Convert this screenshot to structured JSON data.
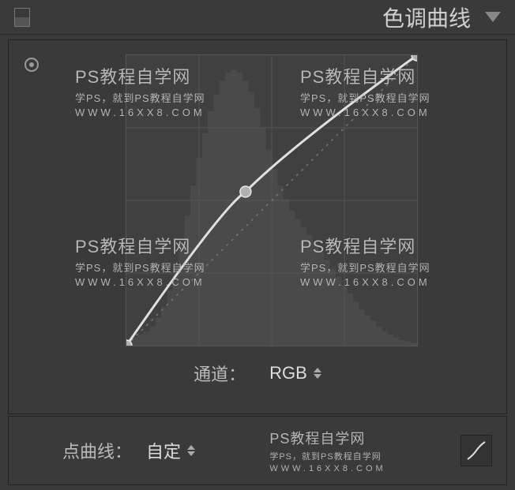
{
  "panel": {
    "title": "色调曲线"
  },
  "curve": {
    "type": "tone-curve",
    "size": 370,
    "background": "#404040",
    "border_color": "#555555",
    "grid_color": "#555555",
    "grid_divisions": 4,
    "diagonal_dot_color": "#777777",
    "histogram_color": "#4a4a4a",
    "histogram_values": [
      0.02,
      0.03,
      0.04,
      0.05,
      0.07,
      0.1,
      0.14,
      0.2,
      0.28,
      0.37,
      0.47,
      0.58,
      0.68,
      0.77,
      0.85,
      0.91,
      0.96,
      0.99,
      1.0,
      0.99,
      0.96,
      0.92,
      0.86,
      0.79,
      0.71,
      0.64,
      0.58,
      0.53,
      0.49,
      0.46,
      0.43,
      0.4,
      0.37,
      0.34,
      0.31,
      0.28,
      0.25,
      0.22,
      0.19,
      0.16,
      0.13,
      0.11,
      0.09,
      0.07,
      0.05,
      0.04,
      0.03,
      0.02,
      0.015,
      0.01
    ],
    "curve_line_color": "#e0e0e0",
    "curve_line_width": 3,
    "point_fill": "#b0b0b0",
    "point_stroke": "#e8e8e8",
    "point_radius": 7,
    "control_points": [
      {
        "x": 0.0,
        "y": 0.0
      },
      {
        "x": 0.41,
        "y": 0.53
      },
      {
        "x": 1.0,
        "y": 1.0
      }
    ]
  },
  "channel": {
    "label": "通道：",
    "value": "RGB"
  },
  "pointCurve": {
    "label": "点曲线：",
    "value": "自定"
  },
  "watermark": {
    "title": "PS教程自学网",
    "sub": "学PS，就到PS教程自学网",
    "url": "WWW.16XX8.COM"
  }
}
